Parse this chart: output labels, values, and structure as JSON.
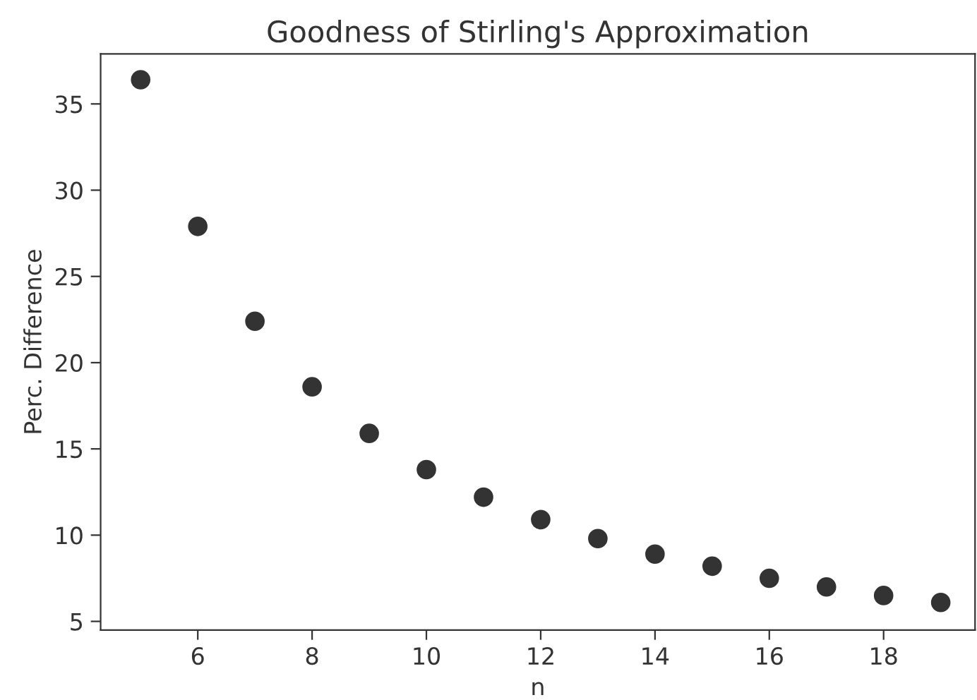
{
  "chart_data": {
    "type": "scatter",
    "title": "Goodness of Stirling's Approximation",
    "xlabel": "n",
    "ylabel": "Perc. Difference",
    "x": [
      5,
      6,
      7,
      8,
      9,
      10,
      11,
      12,
      13,
      14,
      15,
      16,
      17,
      18,
      19
    ],
    "series": [
      {
        "color": "#333333",
        "values": [
          36.4,
          27.9,
          22.4,
          18.6,
          15.9,
          13.8,
          12.2,
          10.9,
          9.8,
          8.9,
          8.2,
          7.5,
          7.0,
          6.5,
          6.1
        ]
      }
    ],
    "xlim": [
      4.3,
      19.6
    ],
    "ylim": [
      4.5,
      37.9
    ],
    "xticks": [
      6,
      8,
      10,
      12,
      14,
      16,
      18
    ],
    "yticks": [
      5,
      10,
      15,
      20,
      25,
      30,
      35
    ],
    "grid": false,
    "legend": false,
    "marker": "circle"
  }
}
